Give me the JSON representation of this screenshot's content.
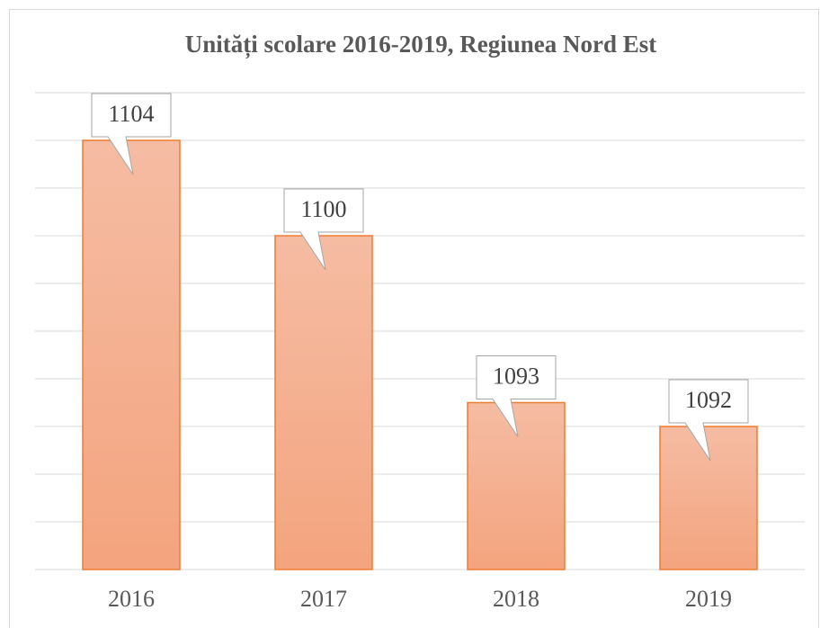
{
  "chart_data": {
    "type": "bar",
    "title": "Unități scolare 2016-2019, Regiunea Nord Est",
    "categories": [
      "2016",
      "2017",
      "2018",
      "2019"
    ],
    "values": [
      1104,
      1100,
      1093,
      1092
    ],
    "color": "#ed7d31",
    "ylim": [
      1086,
      1106
    ],
    "yticks": [
      1086,
      1088,
      1090,
      1092,
      1094,
      1096,
      1098,
      1100,
      1102,
      1104,
      1106
    ],
    "grid": true
  }
}
